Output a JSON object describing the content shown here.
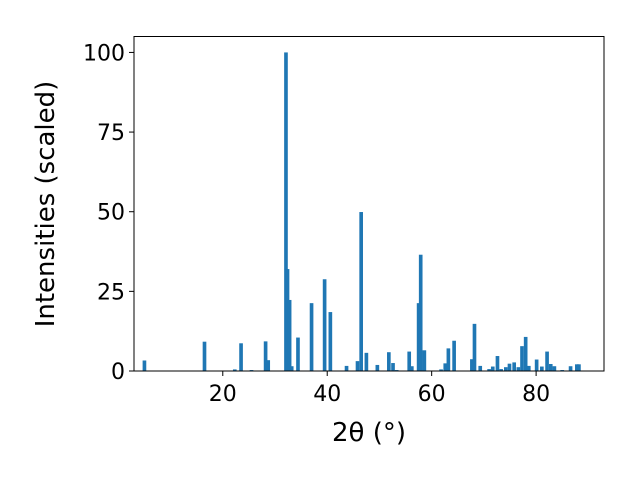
{
  "chart_data": {
    "type": "bar",
    "xlabel": "2θ (°)",
    "ylabel": "Intensities (scaled)",
    "title": "",
    "xlim": [
      3,
      93
    ],
    "ylim": [
      0,
      105
    ],
    "xticks": [
      20,
      40,
      60,
      80
    ],
    "yticks": [
      0,
      25,
      50,
      75,
      100
    ],
    "grid": false,
    "color": "#1f77b4",
    "bar_width": 0.7,
    "x": [
      5.0,
      16.5,
      22.3,
      23.5,
      25.5,
      28.2,
      28.7,
      32.1,
      32.4,
      32.8,
      33.2,
      34.4,
      37.0,
      39.5,
      40.6,
      43.7,
      45.8,
      46.5,
      47.5,
      49.6,
      51.8,
      52.6,
      53.3,
      55.7,
      56.2,
      57.5,
      57.9,
      58.6,
      61.8,
      62.6,
      63.2,
      64.3,
      67.7,
      68.2,
      69.3,
      71.0,
      71.7,
      72.6,
      73.3,
      74.2,
      74.9,
      75.8,
      76.6,
      77.3,
      78.0,
      78.6,
      80.1,
      81.1,
      82.1,
      82.8,
      83.5,
      85.0,
      86.6,
      87.8,
      88.2
    ],
    "values": [
      3.3,
      9.2,
      0.5,
      8.7,
      0.3,
      9.3,
      3.4,
      100.0,
      32.0,
      22.3,
      1.5,
      10.5,
      21.3,
      28.8,
      18.5,
      1.6,
      3.1,
      49.9,
      5.7,
      1.9,
      5.9,
      2.5,
      0.3,
      6.1,
      1.5,
      21.3,
      36.5,
      6.5,
      0.5,
      2.4,
      7.1,
      9.5,
      3.7,
      14.8,
      1.6,
      0.6,
      1.4,
      4.7,
      0.6,
      1.2,
      2.3,
      2.7,
      1.2,
      7.8,
      10.7,
      1.6,
      3.6,
      1.4,
      6.1,
      2.2,
      1.5,
      0.3,
      1.5,
      2.1,
      2.1
    ]
  }
}
